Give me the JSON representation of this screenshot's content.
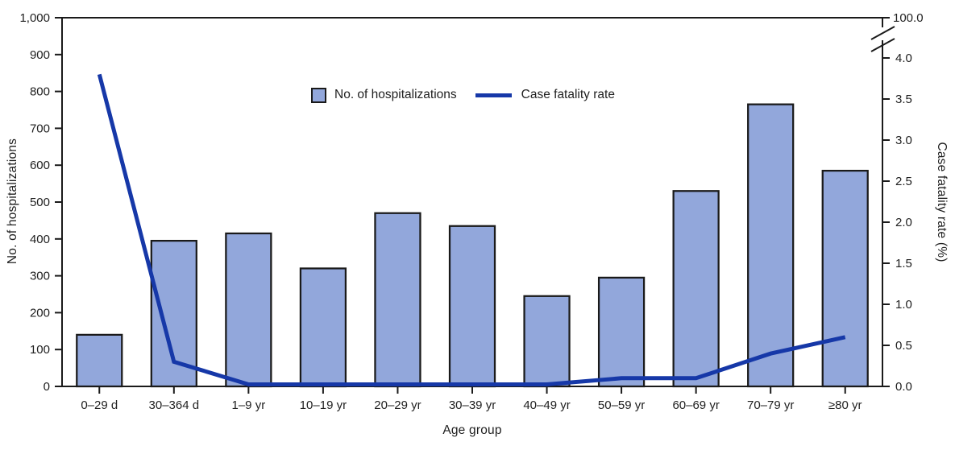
{
  "colors": {
    "background": "#ffffff",
    "bar_fill": "#92a7db",
    "bar_border": "#1a1a1a",
    "line": "#1638a8",
    "axis": "#1a1a1a",
    "text": "#1f1f1f"
  },
  "chart_data": {
    "type": "bar",
    "subtype": "combo bar + line, dual y-axes",
    "title": "",
    "xlabel": "Age group",
    "ylabel_left": "No. of hospitalizations",
    "ylabel_right": "Case fatality rate (%)",
    "categories": [
      "0–29 d",
      "30–364 d",
      "1–9 yr",
      "10–19 yr",
      "20–29 yr",
      "30–39 yr",
      "40–49 yr",
      "50–59 yr",
      "60–69 yr",
      "70–79 yr",
      "≥80 yr"
    ],
    "series": [
      {
        "name": "No. of hospitalizations",
        "type": "bar",
        "axis": "left",
        "values": [
          140,
          395,
          415,
          320,
          470,
          435,
          245,
          295,
          530,
          765,
          585
        ]
      },
      {
        "name": "Case fatality rate",
        "type": "line",
        "axis": "right",
        "values": [
          3.8,
          0.3,
          0.0,
          0.0,
          0.0,
          0.0,
          0.0,
          0.1,
          0.1,
          0.4,
          0.6
        ]
      }
    ],
    "left_axis": {
      "min": 0,
      "max": 1000,
      "step": 100,
      "tick_labels": [
        "0",
        "100",
        "200",
        "300",
        "400",
        "500",
        "600",
        "700",
        "800",
        "900",
        "1,000"
      ]
    },
    "right_axis": {
      "min": 0,
      "shown_max": 4.0,
      "step": 0.5,
      "tick_labels": [
        "0.0",
        "0.5",
        "1.0",
        "1.5",
        "2.0",
        "2.5",
        "3.0",
        "3.5",
        "4.0"
      ],
      "top_label": "100.0",
      "axis_break": true
    },
    "legend": [
      "No. of hospitalizations",
      "Case fatality rate"
    ],
    "legend_position": "inside top center",
    "grid": false
  }
}
